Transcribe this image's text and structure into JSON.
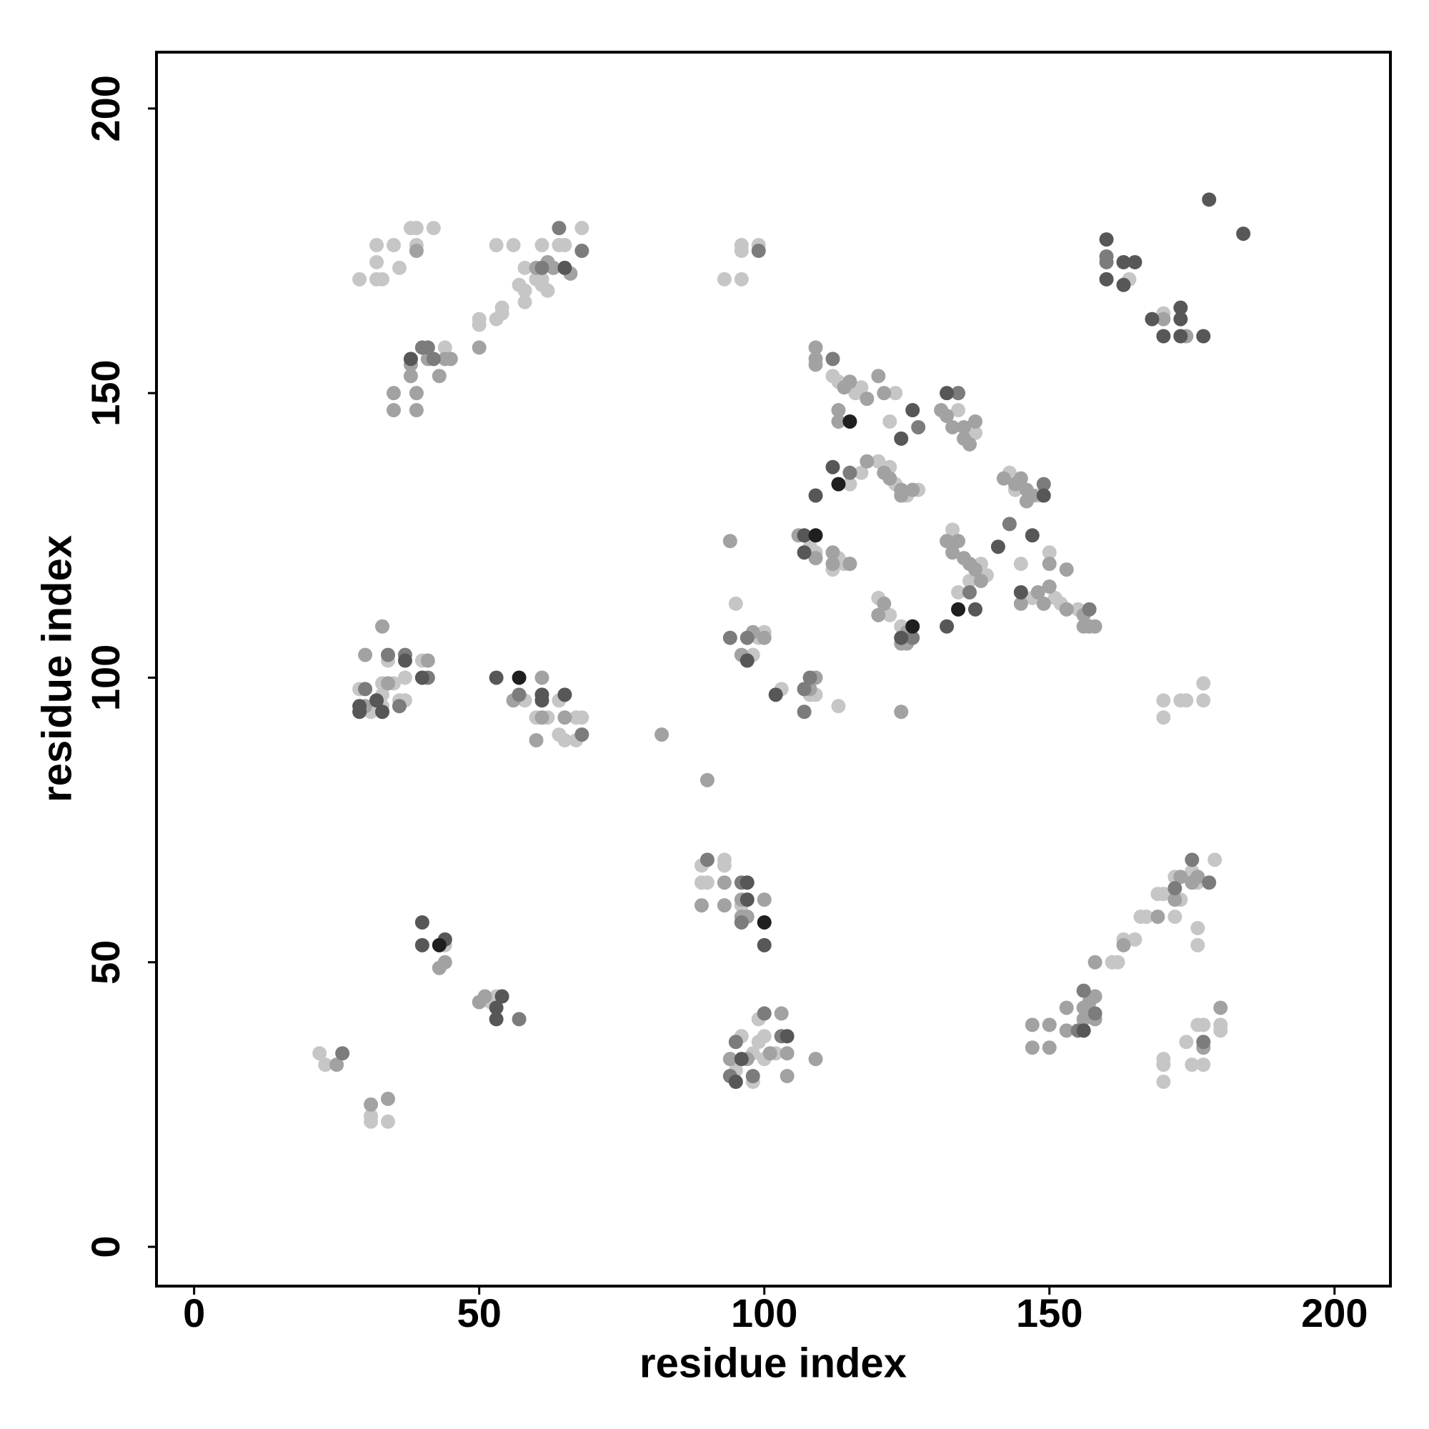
{
  "chart_data": {
    "type": "scatter",
    "xlabel": "residue index",
    "ylabel": "residue index",
    "xlim": [
      -6.6,
      209.8
    ],
    "ylim": [
      -6.9,
      209.9
    ],
    "xticks": [
      0,
      50,
      100,
      150,
      200
    ],
    "yticks": [
      0,
      50,
      100,
      150,
      200
    ],
    "grid": false,
    "series": [
      {
        "color": "#c6c6c6",
        "x": [
          22,
          23,
          31,
          31,
          34,
          44,
          52,
          53,
          89,
          89,
          90,
          93,
          93,
          96,
          95,
          96,
          98,
          99,
          99,
          100,
          98,
          100,
          102,
          161,
          162,
          163,
          165,
          166,
          167,
          169,
          170,
          172,
          172,
          173,
          175,
          176,
          179,
          176,
          176,
          170,
          170,
          170,
          174,
          175,
          177,
          176,
          177,
          180,
          180,
          31,
          29,
          33,
          33,
          33,
          34,
          35,
          36,
          37,
          37,
          40,
          58,
          60,
          62,
          64,
          64,
          65,
          67,
          68,
          67,
          99,
          98,
          95,
          100,
          103,
          108,
          109,
          113,
          108,
          109,
          113,
          114,
          112,
          115,
          120,
          117,
          123,
          125,
          127,
          122,
          112,
          113,
          116,
          117,
          122,
          123,
          134,
          137,
          143,
          148,
          144,
          133,
          138,
          139,
          136,
          145,
          134,
          120,
          122,
          124,
          151,
          152,
          155,
          150,
          147,
          29,
          32,
          33,
          32,
          32,
          35,
          36,
          38,
          39,
          39,
          42,
          44,
          50,
          50,
          53,
          54,
          54,
          53,
          56,
          58,
          58,
          58,
          61,
          61,
          61,
          62,
          64,
          65,
          68,
          57,
          60,
          93,
          96,
          96,
          96,
          99,
          164,
          170,
          170,
          170,
          173,
          174,
          177,
          177
        ],
        "y": [
          34,
          32,
          22,
          23,
          22,
          53,
          43,
          44,
          67,
          64,
          64,
          68,
          67,
          60,
          31,
          37,
          34,
          36,
          40,
          37,
          29,
          33,
          34,
          50,
          50,
          54,
          54,
          58,
          58,
          62,
          62,
          58,
          65,
          61,
          66,
          64,
          68,
          56,
          53,
          29,
          32,
          33,
          36,
          32,
          32,
          39,
          39,
          39,
          38,
          94,
          98,
          95,
          97,
          99,
          103,
          99,
          96,
          96,
          100,
          103,
          96,
          93,
          93,
          96,
          90,
          89,
          93,
          93,
          89,
          107,
          104,
          113,
          108,
          98,
          97,
          97,
          95,
          123,
          122,
          121,
          120,
          119,
          134,
          138,
          136,
          134,
          132,
          133,
          137,
          153,
          152,
          150,
          151,
          145,
          150,
          147,
          143,
          136,
          132,
          133,
          126,
          120,
          118,
          117,
          120,
          115,
          114,
          111,
          109,
          114,
          113,
          112,
          122,
          114,
          170,
          170,
          170,
          176,
          173,
          176,
          172,
          179,
          179,
          176,
          179,
          158,
          162,
          163,
          163,
          165,
          164,
          176,
          176,
          172,
          166,
          168,
          176,
          170,
          169,
          168,
          176,
          176,
          179,
          169,
          170,
          170,
          170,
          176,
          175,
          176,
          170,
          164,
          96,
          93,
          96,
          96,
          99,
          96
        ]
      },
      {
        "color": "#a2a2a2",
        "x": [
          25,
          31,
          34,
          43,
          44,
          50,
          51,
          89,
          93,
          93,
          96,
          96,
          97,
          100,
          94,
          97,
          101,
          103,
          104,
          104,
          109,
          147,
          147,
          150,
          150,
          153,
          153,
          156,
          157,
          158,
          158,
          158,
          156,
          163,
          169,
          172,
          173,
          175,
          176,
          177,
          180,
          30,
          30,
          34,
          41,
          33,
          56,
          61,
          61,
          65,
          60,
          82,
          90,
          96,
          98,
          100,
          108,
          109,
          124,
          94,
          106,
          109,
          112,
          112,
          115,
          118,
          121,
          122,
          124,
          126,
          124,
          109,
          109,
          109,
          114,
          115,
          118,
          113,
          113,
          120,
          121,
          131,
          132,
          133,
          135,
          135,
          136,
          137,
          142,
          144,
          145,
          146,
          147,
          146,
          132,
          133,
          134,
          135,
          136,
          137,
          138,
          121,
          120,
          125,
          125,
          145,
          148,
          150,
          153,
          156,
          156,
          157,
          158,
          153,
          150,
          149,
          124,
          39,
          35,
          35,
          38,
          38,
          39,
          39,
          41,
          43,
          44,
          45,
          50,
          60,
          62,
          63,
          66,
          170,
          174
        ],
        "y": [
          32,
          25,
          26,
          49,
          50,
          43,
          44,
          60,
          64,
          60,
          61,
          58,
          58,
          61,
          33,
          33,
          34,
          41,
          34,
          30,
          33,
          39,
          35,
          39,
          35,
          38,
          42,
          42,
          43,
          44,
          40,
          50,
          40,
          53,
          58,
          61,
          65,
          64,
          65,
          35,
          42,
          95,
          104,
          99,
          103,
          109,
          96,
          100,
          93,
          93,
          89,
          90,
          82,
          104,
          108,
          107,
          98,
          100,
          94,
          124,
          125,
          121,
          122,
          120,
          120,
          138,
          136,
          135,
          133,
          133,
          132,
          158,
          156,
          155,
          151,
          152,
          149,
          147,
          145,
          153,
          150,
          147,
          146,
          144,
          144,
          142,
          141,
          145,
          135,
          134,
          135,
          133,
          132,
          131,
          124,
          122,
          124,
          121,
          120,
          119,
          117,
          113,
          111,
          108,
          106,
          113,
          115,
          116,
          112,
          111,
          109,
          109,
          109,
          119,
          120,
          113,
          106,
          175,
          150,
          147,
          155,
          153,
          150,
          147,
          156,
          153,
          156,
          156,
          158,
          172,
          173,
          172,
          171,
          163,
          160
        ]
      },
      {
        "color": "#7c7c7c",
        "x": [
          26,
          57,
          90,
          96,
          96,
          94,
          98,
          95,
          100,
          103,
          155,
          156,
          158,
          172,
          175,
          178,
          177,
          30,
          34,
          36,
          37,
          41,
          57,
          68,
          94,
          97,
          108,
          107,
          107,
          115,
          112,
          127,
          134,
          149,
          143,
          136,
          126,
          157,
          40,
          41,
          42,
          61,
          64,
          68,
          99,
          160,
          160
        ],
        "y": [
          34,
          40,
          68,
          64,
          57,
          30,
          30,
          36,
          41,
          37,
          38,
          45,
          41,
          63,
          68,
          64,
          36,
          98,
          104,
          95,
          104,
          100,
          97,
          90,
          107,
          107,
          100,
          98,
          94,
          136,
          156,
          144,
          150,
          134,
          127,
          115,
          107,
          112,
          158,
          158,
          156,
          172,
          179,
          175,
          175,
          174,
          173
        ]
      },
      {
        "color": "#575757",
        "x": [
          40,
          40,
          44,
          53,
          54,
          53,
          97,
          97,
          100,
          95,
          96,
          104,
          156,
          29,
          29,
          32,
          33,
          37,
          40,
          53,
          61,
          61,
          65,
          97,
          102,
          107,
          107,
          109,
          112,
          124,
          126,
          132,
          149,
          141,
          147,
          137,
          132,
          124,
          145,
          38,
          65,
          160,
          160,
          163,
          163,
          165,
          168,
          170,
          173,
          173,
          173,
          177,
          178,
          184
        ],
        "y": [
          57,
          53,
          54,
          42,
          44,
          40,
          64,
          61,
          53,
          29,
          33,
          37,
          38,
          95,
          94,
          96,
          94,
          103,
          100,
          100,
          97,
          96,
          97,
          103,
          97,
          125,
          122,
          132,
          137,
          142,
          147,
          150,
          132,
          123,
          125,
          112,
          109,
          107,
          115,
          156,
          172,
          177,
          170,
          173,
          169,
          173,
          163,
          160,
          165,
          163,
          160,
          160,
          184,
          178
        ]
      },
      {
        "color": "#1f1f1f",
        "x": [
          43,
          100,
          57,
          109,
          113,
          115,
          134,
          126
        ],
        "y": [
          53,
          57,
          100,
          125,
          134,
          145,
          112,
          109
        ]
      }
    ]
  }
}
